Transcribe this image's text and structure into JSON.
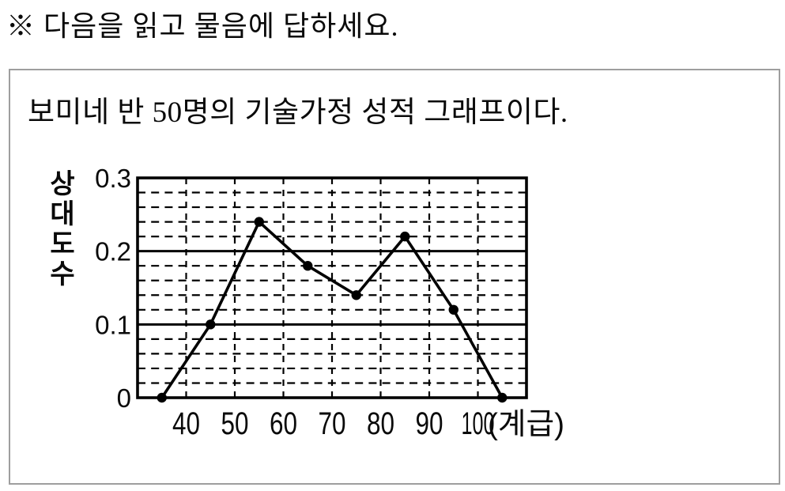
{
  "page": {
    "instruction": "※ 다음을 읽고 물음에 답하세요."
  },
  "panel": {
    "description": "보미네 반 50명의 기술가정 성적 그래프이다."
  },
  "chart_data": {
    "type": "line",
    "title": "",
    "ylabel": "상대도수",
    "x_axis_suffix": "(계급)",
    "x": [
      35,
      45,
      55,
      65,
      75,
      85,
      95,
      105
    ],
    "values": [
      0,
      0.1,
      0.24,
      0.18,
      0.14,
      0.22,
      0.12,
      0
    ],
    "x_ticks": [
      40,
      50,
      60,
      70,
      80,
      90,
      100
    ],
    "x_tick_labels": [
      "40",
      "50",
      "60",
      "70",
      "80",
      "90",
      "100"
    ],
    "y_ticks": [
      0,
      0.1,
      0.2,
      0.3
    ],
    "y_tick_labels": [
      "0",
      "0.1",
      "0.2",
      "0.3"
    ],
    "xlim": [
      30,
      110
    ],
    "ylim": [
      0,
      0.3
    ],
    "y_minor_step": 0.02,
    "grid": {
      "horizontal_minor": "dashed",
      "horizontal_major": "solid",
      "vertical_major": "dashed"
    },
    "legend": "none",
    "line_color": "#000000",
    "marker": "filled-circle",
    "background": "#ffffff"
  }
}
